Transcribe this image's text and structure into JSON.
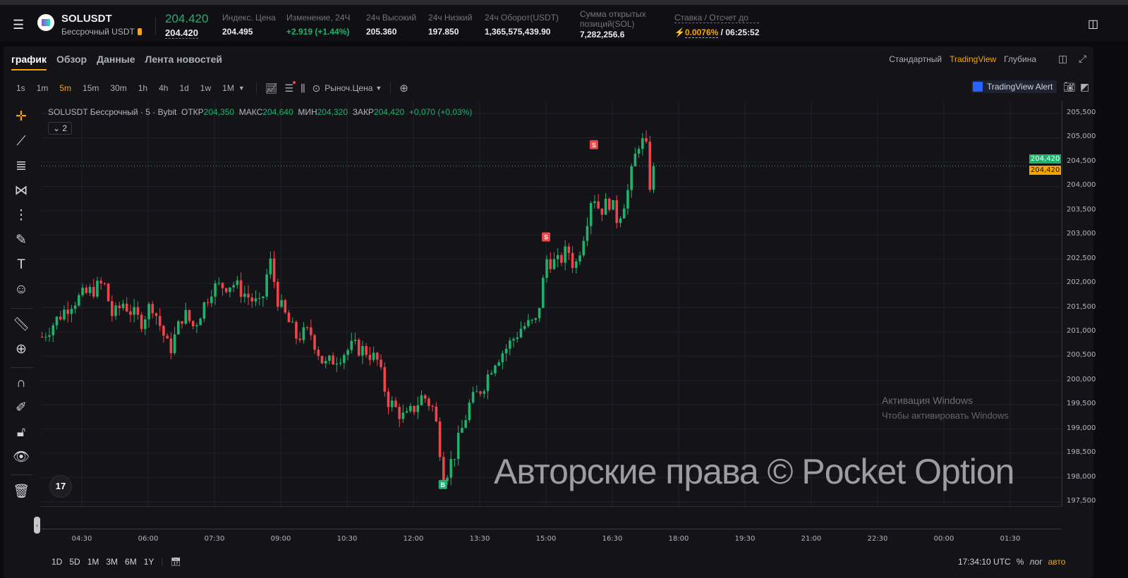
{
  "header": {
    "symbol": "SOLUSDT",
    "subtitle": "Бессрочный USDT",
    "last_price": "204.420",
    "mark_price": "204.420",
    "stats": [
      {
        "label": "Индекс. Цена",
        "value": "204.495"
      },
      {
        "label": "Изменение, 24Ч",
        "value": "+2.919 (+1.44%)"
      },
      {
        "label": "24ч Высокий",
        "value": "205.360"
      },
      {
        "label": "24ч Низкий",
        "value": "197.850"
      },
      {
        "label": "24ч Оборот(USDT)",
        "value": "1,365,575,439.90"
      },
      {
        "label": "Сумма открытых позиций(SOL)",
        "value": "7,282,256.6"
      }
    ],
    "funding_label": "Ставка / Отсчет до",
    "funding_rate": "0.0076%",
    "countdown": "/ 06:25:52"
  },
  "tabs": [
    "график",
    "Обзор",
    "Данные",
    "Лента новостей"
  ],
  "views": [
    "Стандартный",
    "TradingView",
    "Глубина"
  ],
  "timeframes": [
    "1s",
    "1m",
    "5m",
    "15m",
    "30m",
    "1h",
    "4h",
    "1d",
    "1w",
    "1M"
  ],
  "active_timeframe": "5m",
  "price_type": "Рыноч.Цена",
  "alert_label": "TradingView Alert",
  "legend": {
    "title": "SOLUSDT Бессрочный · 5 · Bybit",
    "open_l": "ОТКР",
    "open": "204,350",
    "high_l": "МАКС",
    "high": "204,640",
    "low_l": "МИН",
    "low": "204,320",
    "close_l": "ЗАКР",
    "close": "204,420",
    "change": "+0,070 (+0,03%)",
    "indicators": "2"
  },
  "tv_logo": "17",
  "ranges": [
    "1D",
    "5D",
    "1M",
    "3M",
    "6M",
    "1Y"
  ],
  "bottom_right": {
    "time": "17:34:10 UTC",
    "percent": "%",
    "log": "лог",
    "auto": "авто"
  },
  "watermark": "Авторские права © Pocket Option",
  "windows_notice": [
    "Активация Windows",
    "Чтобы активировать Windows"
  ],
  "colors": {
    "up": "#20b26c",
    "down": "#ef454a",
    "accent": "#f7a600"
  },
  "chart_data": {
    "type": "candlestick",
    "interval": "5m",
    "ylim": [
      197.5,
      205.5
    ],
    "y_ticks": [
      "205,500",
      "205,000",
      "204,500",
      "204,000",
      "203,500",
      "203,000",
      "202,500",
      "202,000",
      "201,500",
      "201,000",
      "200,500",
      "200,000",
      "199,500",
      "199,000",
      "198,500",
      "198,000",
      "197,500"
    ],
    "x_ticks": [
      "04:30",
      "06:00",
      "07:30",
      "09:00",
      "10:30",
      "12:00",
      "13:30",
      "15:00",
      "16:30",
      "18:00",
      "19:30",
      "21:00",
      "22:30",
      "00:00",
      "01:30"
    ],
    "last_price": "204,420",
    "mark_price": "204,420",
    "price_path": [
      [
        "03:36",
        200.9
      ],
      [
        "04:15",
        201.6
      ],
      [
        "05:00",
        202.0
      ],
      [
        "05:12",
        201.3
      ],
      [
        "05:26",
        201.6
      ],
      [
        "05:50",
        201.2
      ],
      [
        "06:05",
        201.6
      ],
      [
        "06:29",
        200.6
      ],
      [
        "06:48",
        201.4
      ],
      [
        "07:02",
        201.1
      ],
      [
        "07:26",
        201.9
      ],
      [
        "07:55",
        202.0
      ],
      [
        "08:33",
        201.5
      ],
      [
        "08:45",
        202.5
      ],
      [
        "08:57",
        201.6
      ],
      [
        "09:21",
        200.9
      ],
      [
        "09:40",
        201.0
      ],
      [
        "09:59",
        200.3
      ],
      [
        "10:18",
        200.5
      ],
      [
        "10:38",
        200.7
      ],
      [
        "10:57",
        200.6
      ],
      [
        "11:11",
        200.4
      ],
      [
        "11:25",
        199.6
      ],
      [
        "11:49",
        199.2
      ],
      [
        "12:04",
        199.5
      ],
      [
        "12:13",
        199.7
      ],
      [
        "12:28",
        199.4
      ],
      [
        "12:42",
        198.0
      ],
      [
        "12:56",
        198.5
      ],
      [
        "13:16",
        199.5
      ],
      [
        "13:35",
        199.9
      ],
      [
        "13:49",
        200.4
      ],
      [
        "14:08",
        200.7
      ],
      [
        "14:27",
        201.1
      ],
      [
        "14:47",
        201.2
      ],
      [
        "15:01",
        202.5
      ],
      [
        "15:15",
        202.4
      ],
      [
        "15:30",
        202.7
      ],
      [
        "15:39",
        202.3
      ],
      [
        "15:54",
        203.2
      ],
      [
        "16:03",
        203.9
      ],
      [
        "16:13",
        203.5
      ],
      [
        "16:27",
        203.7
      ],
      [
        "16:37",
        203.3
      ],
      [
        "16:51",
        203.9
      ],
      [
        "17:05",
        204.9
      ],
      [
        "17:15",
        204.9
      ],
      [
        "17:22",
        203.9
      ],
      [
        "17:29",
        204.42
      ]
    ],
    "signals": [
      {
        "label": "B",
        "time": "12:40",
        "price": 197.85,
        "side": "buy"
      },
      {
        "label": "S",
        "time": "15:00",
        "price": 202.95,
        "side": "sell"
      },
      {
        "label": "S",
        "time": "16:05",
        "price": 204.85,
        "side": "sell"
      }
    ]
  }
}
